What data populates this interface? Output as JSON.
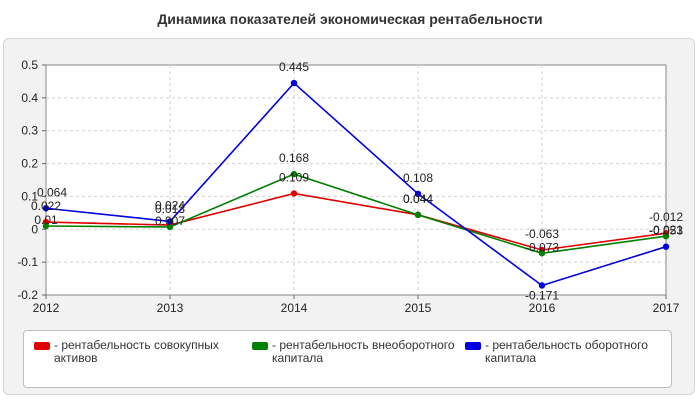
{
  "chart_data": {
    "type": "line",
    "title": "Динамика показателей экономическая рентабельности",
    "x": [
      "2012",
      "2013",
      "2014",
      "2015",
      "2016",
      "2017"
    ],
    "ylim": [
      -0.2,
      0.5
    ],
    "yticks": [
      "0.5",
      "0.4",
      "0.3",
      "0.2",
      "0.1",
      "0",
      "-0.1",
      "-0.2"
    ],
    "ytick_values": [
      0.5,
      0.4,
      0.3,
      0.2,
      0.1,
      0,
      -0.1,
      -0.2
    ],
    "grid": true,
    "legend_position": "bottom",
    "series": [
      {
        "name": "- рентабельность совокупных активов",
        "color": "#e00000",
        "values": [
          0.022,
          0.013,
          0.109,
          0.044,
          -0.063,
          -0.012
        ],
        "labels": [
          "0.022",
          "0.013",
          "0.109",
          "0.044",
          "-0.063",
          "-0.012"
        ]
      },
      {
        "name": "- рентабельность внеоборотного капитала",
        "color": "#008000",
        "values": [
          0.01,
          0.007,
          0.168,
          0.044,
          -0.073,
          -0.021
        ],
        "labels": [
          "0.01",
          "0.007",
          "0.168",
          "0.044",
          "-0.073",
          "-0.021"
        ]
      },
      {
        "name": "- рентабельность оборотного капитала",
        "color": "#0000e0",
        "values": [
          0.064,
          0.024,
          0.445,
          0.108,
          -0.171,
          -0.053
        ],
        "labels": [
          "0.064",
          "0.024",
          "0.445",
          "0.108",
          "-0.171",
          "-0.053"
        ]
      }
    ]
  }
}
